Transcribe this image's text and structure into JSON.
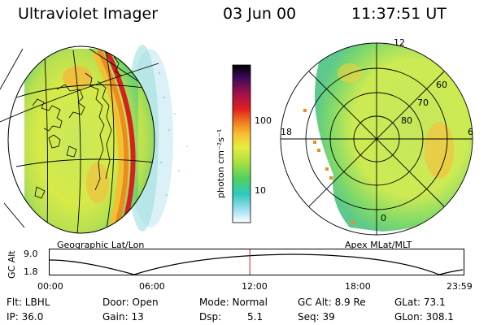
{
  "header": {
    "instrument": "Ultraviolet Imager",
    "date": "03 Jun 00",
    "time": "11:37:51 UT"
  },
  "colorbar": {
    "unit_label": "photon cm⁻²s⁻¹",
    "ticks": [
      "100",
      "10"
    ]
  },
  "left_panel": {
    "caption": "Geographic Lat/Lon"
  },
  "right_panel": {
    "caption": "Apex MLat/MLT",
    "mlt_labels": {
      "top": "12",
      "left": "18",
      "right": "6",
      "bottom": "0"
    },
    "lat_labels": [
      "60",
      "70",
      "80"
    ]
  },
  "timeline": {
    "ylabel": "GC Alt",
    "yticks": [
      "9.0",
      "1.8"
    ],
    "xticks": [
      "00:00",
      "06:00",
      "12:00",
      "18:00",
      "23:59"
    ],
    "marker_fraction": 0.4846
  },
  "info": {
    "row1": [
      "Flt: LBHL",
      "Door: Open",
      "Mode: Normal",
      "GC Alt: 8.9 Re",
      "GLat: 73.1"
    ],
    "row2": [
      "IP: 36.0",
      "Gain: 13",
      "Dsp:",
      "5.1",
      "Seq: 39",
      "GLon: 308.1"
    ]
  }
}
